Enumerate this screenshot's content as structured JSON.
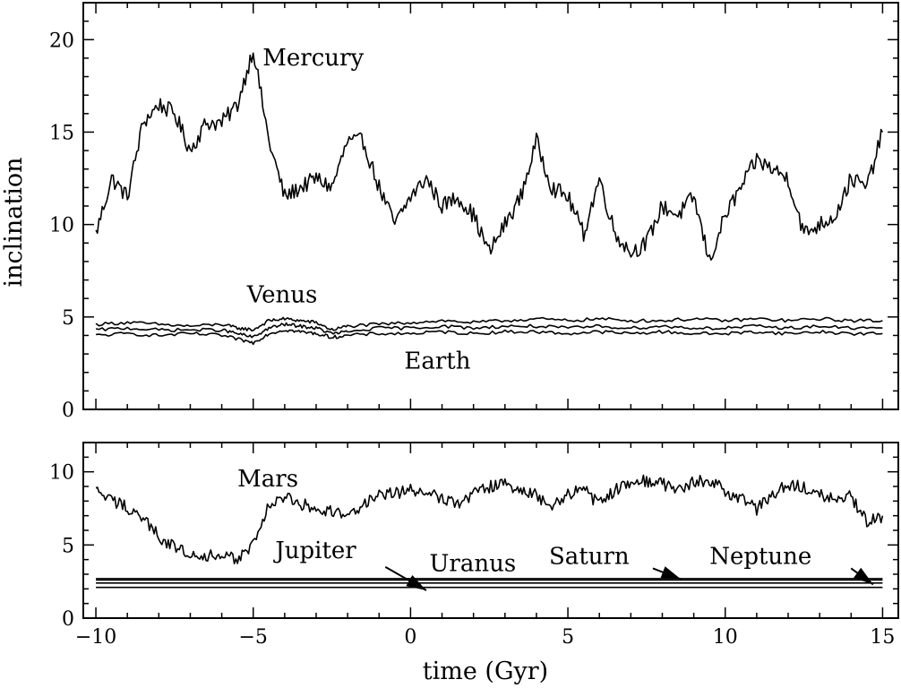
{
  "chart_data": [
    {
      "type": "line",
      "panel": "top",
      "xlim": [
        -10.4,
        15.5
      ],
      "ylim": [
        0,
        22
      ],
      "ylabel": "inclination",
      "xlabel": "",
      "xticks": [
        -10,
        -5,
        0,
        5,
        10,
        15
      ],
      "yticks": [
        0,
        5,
        10,
        15,
        20
      ],
      "ytick_labels": [
        "0",
        "5",
        "10",
        "15",
        "20"
      ],
      "series": [
        {
          "name": "Mercury",
          "x": [
            -10,
            -9.5,
            -9,
            -8.5,
            -8,
            -7.5,
            -7,
            -6.5,
            -6,
            -5.5,
            -5,
            -4.5,
            -4,
            -3.5,
            -3,
            -2.5,
            -2,
            -1.5,
            -1,
            -0.5,
            0,
            0.5,
            1,
            1.5,
            2,
            2.5,
            3,
            3.5,
            4,
            4.5,
            5,
            5.5,
            6,
            6.5,
            7,
            7.5,
            8,
            8.5,
            9,
            9.5,
            10,
            10.5,
            11,
            11.5,
            12,
            12.5,
            13,
            13.5,
            14,
            14.5,
            15
          ],
          "y": [
            9.5,
            12.5,
            11.5,
            15.5,
            16.5,
            16,
            14,
            15.5,
            15.5,
            16.5,
            19.5,
            14.5,
            11.5,
            12,
            12.5,
            12,
            14.5,
            14.5,
            12,
            10,
            11.5,
            12.5,
            11,
            11.5,
            10.5,
            8.5,
            10,
            11.5,
            14.5,
            12,
            11.5,
            9.5,
            12.5,
            9.5,
            8.5,
            9,
            11,
            10.5,
            11.5,
            8,
            10.5,
            12,
            13.5,
            13,
            12.5,
            9.5,
            10,
            10.5,
            12.5,
            12,
            15
          ]
        },
        {
          "name": "Venus",
          "x": [
            -10,
            -9,
            -8,
            -7,
            -6,
            -5.5,
            -5,
            -4.5,
            -4,
            -3.5,
            -3,
            -2.5,
            -2,
            -1,
            0,
            1,
            2,
            3,
            4,
            5,
            6,
            7,
            8,
            9,
            10,
            11,
            12,
            13,
            14,
            15
          ],
          "y": [
            4.6,
            4.7,
            4.6,
            4.5,
            4.6,
            4.4,
            4.3,
            4.8,
            4.9,
            4.8,
            4.7,
            4.3,
            4.5,
            4.6,
            4.7,
            4.8,
            4.7,
            4.8,
            4.9,
            4.8,
            4.9,
            4.8,
            4.8,
            4.9,
            4.8,
            4.9,
            4.8,
            4.9,
            4.8,
            4.8
          ]
        },
        {
          "name": "Earth",
          "x": [
            -10,
            -9,
            -8,
            -7,
            -6,
            -5.5,
            -5,
            -4.5,
            -4,
            -3.5,
            -3,
            -2.5,
            -2,
            -1,
            0,
            1,
            2,
            3,
            4,
            5,
            6,
            7,
            8,
            9,
            10,
            11,
            12,
            13,
            14,
            15
          ],
          "y": [
            4.0,
            4.1,
            4.0,
            4.1,
            4.0,
            3.8,
            3.6,
            4.1,
            4.3,
            4.2,
            4.1,
            3.9,
            4.0,
            4.1,
            4.1,
            4.2,
            4.1,
            4.2,
            4.2,
            4.1,
            4.2,
            4.1,
            4.2,
            4.1,
            4.1,
            4.2,
            4.1,
            4.2,
            4.1,
            4.1
          ]
        },
        {
          "name": "",
          "x": [
            -10,
            -9,
            -8,
            -7,
            -6,
            -5.5,
            -5,
            -4.5,
            -4,
            -3.5,
            -3,
            -2.5,
            -2,
            -1,
            0,
            1,
            2,
            3,
            4,
            5,
            6,
            7,
            8,
            9,
            10,
            11,
            12,
            13,
            14,
            15
          ],
          "y": [
            4.3,
            4.4,
            4.3,
            4.3,
            4.3,
            4.1,
            3.9,
            4.4,
            4.6,
            4.5,
            4.4,
            4.1,
            4.2,
            4.4,
            4.4,
            4.5,
            4.4,
            4.5,
            4.5,
            4.4,
            4.5,
            4.4,
            4.5,
            4.4,
            4.4,
            4.5,
            4.4,
            4.5,
            4.4,
            4.4
          ]
        }
      ],
      "labels": [
        {
          "text": "Mercury",
          "x": -4.7,
          "y": 18.6
        },
        {
          "text": "Venus",
          "x": -5.2,
          "y": 5.8
        },
        {
          "text": "Earth",
          "x": -0.2,
          "y": 2.2
        }
      ]
    },
    {
      "type": "line",
      "panel": "bottom",
      "xlim": [
        -10.4,
        15.5
      ],
      "ylim": [
        0,
        12
      ],
      "xlabel": "time (Gyr)",
      "ylabel": "",
      "xticks": [
        -10,
        -5,
        0,
        5,
        10,
        15
      ],
      "xtick_labels": [
        "−10",
        "−5",
        "0",
        "5",
        "10",
        "15"
      ],
      "yticks": [
        0,
        5,
        10
      ],
      "ytick_labels": [
        "0",
        "5",
        "10"
      ],
      "series": [
        {
          "name": "Mars",
          "x": [
            -10,
            -9.5,
            -9,
            -8.5,
            -8,
            -7.5,
            -7,
            -6.5,
            -6,
            -5.5,
            -5,
            -4.5,
            -4,
            -3.5,
            -3,
            -2.5,
            -2,
            -1.5,
            -1,
            -0.5,
            0,
            0.5,
            1,
            1.5,
            2,
            2.5,
            3,
            3.5,
            4,
            4.5,
            5,
            5.5,
            6,
            6.5,
            7,
            7.5,
            8,
            8.5,
            9,
            9.5,
            10,
            10.5,
            11,
            11.5,
            12,
            12.5,
            13,
            13.5,
            14,
            14.5,
            15
          ],
          "y": [
            8.7,
            8.0,
            7.6,
            6.8,
            5.6,
            4.8,
            4.5,
            4.3,
            4.1,
            4.1,
            5.0,
            7.8,
            8.2,
            7.8,
            7.5,
            7.3,
            7.0,
            7.8,
            8.3,
            8.5,
            8.8,
            8.5,
            8.3,
            7.8,
            8.5,
            9.0,
            9.1,
            8.8,
            8.4,
            7.6,
            8.5,
            8.8,
            7.7,
            8.8,
            9.3,
            9.4,
            9.2,
            8.7,
            9.3,
            9.5,
            8.6,
            8.2,
            7.4,
            8.5,
            9.2,
            9.0,
            8.6,
            8.0,
            8.3,
            6.5,
            7.0
          ]
        },
        {
          "name": "Jupiter",
          "x": [
            -10,
            15
          ],
          "y": [
            2.6,
            2.6
          ]
        },
        {
          "name": "Uranus",
          "x": [
            -10,
            15
          ],
          "y": [
            2.4,
            2.4
          ]
        },
        {
          "name": "Saturn",
          "x": [
            -10,
            15
          ],
          "y": [
            2.7,
            2.7
          ]
        },
        {
          "name": "Neptune",
          "x": [
            -10,
            15
          ],
          "y": [
            2.1,
            2.1
          ]
        }
      ],
      "labels": [
        {
          "text": "Mars",
          "x": -5.5,
          "y": 9.0
        },
        {
          "text": "Jupiter",
          "x": -4.3,
          "y": 4.1
        },
        {
          "text": "Uranus",
          "x": 0.6,
          "y": 3.2
        },
        {
          "text": "Saturn",
          "x": 4.4,
          "y": 3.7
        },
        {
          "text": "Neptune",
          "x": 9.5,
          "y": 3.7
        }
      ],
      "arrows": [
        {
          "from": [
            -0.8,
            3.5
          ],
          "to": [
            0.5,
            1.9
          ]
        },
        {
          "from": [
            7.7,
            3.4
          ],
          "to": [
            8.6,
            2.65
          ]
        },
        {
          "from": [
            14.0,
            3.4
          ],
          "to": [
            14.7,
            2.3
          ]
        }
      ]
    }
  ]
}
